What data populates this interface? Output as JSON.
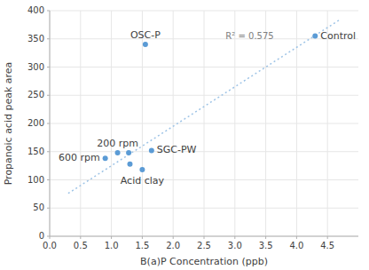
{
  "chart_data": {
    "type": "scatter",
    "x": [
      4.3,
      1.55,
      0.9,
      1.1,
      1.28,
      1.3,
      1.65,
      1.5
    ],
    "values": [
      355,
      340,
      138,
      148,
      148,
      128,
      152,
      118
    ],
    "point_labels": [
      "Control",
      "OSC-P",
      "600 rpm",
      "200 rpm",
      null,
      null,
      "SGC-PW",
      "Acid clay"
    ],
    "color": "#5B9BD5",
    "trendline": {
      "x": [
        0.3,
        4.7
      ],
      "values": [
        76,
        384
      ],
      "color": "#9DC3E6",
      "line_style": "dotted"
    },
    "annotations": [
      {
        "text": "R² = 0.575",
        "x": 2.85,
        "y": 355
      }
    ],
    "x_label": "B(a)P Concentration (ppb)",
    "y_label": "Propanoic acid peak area",
    "xlim": [
      0,
      5
    ],
    "ylim": [
      0,
      400
    ],
    "xticks": [
      {
        "value": 0,
        "label": "0.0"
      },
      0.5,
      {
        "value": 1.0,
        "label": "1.0"
      },
      1.5,
      {
        "value": 2.0,
        "label": "2.0"
      },
      2.5,
      {
        "value": 3.0,
        "label": "3.0"
      },
      3.5,
      {
        "value": 4.0,
        "label": "4.0"
      },
      4.5
    ],
    "yticks": [
      0,
      50,
      100,
      150,
      200,
      250,
      300,
      350,
      400
    ],
    "grid": true
  }
}
